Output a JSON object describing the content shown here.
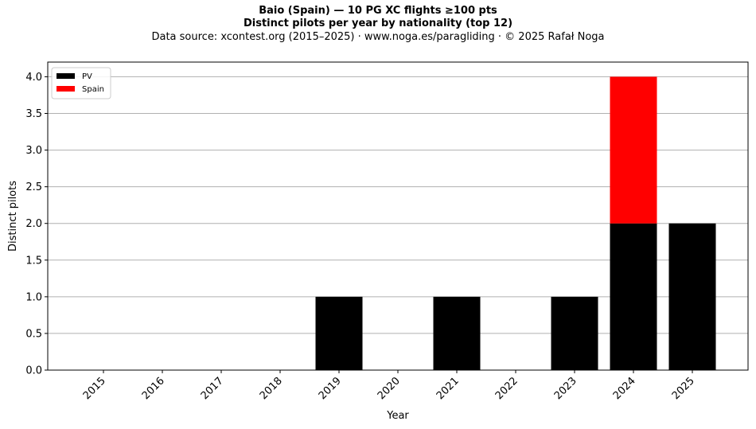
{
  "header": {
    "title_line1": "Baio (Spain)  —  10 PG XC flights ≥100 pts",
    "title_line2": "Distinct pilots per year by nationality (top 12)",
    "source_line": "Data source: xcontest.org (2015–2025)  ·  www.noga.es/paragliding  ·  © 2025 Rafał Noga"
  },
  "chart_data": {
    "type": "bar",
    "stacked": true,
    "categories": [
      "2015",
      "2016",
      "2017",
      "2018",
      "2019",
      "2020",
      "2021",
      "2022",
      "2023",
      "2024",
      "2025"
    ],
    "series": [
      {
        "name": "PV",
        "color": "#000000",
        "values": [
          0,
          0,
          0,
          0,
          1,
          0,
          1,
          0,
          1,
          2,
          2
        ]
      },
      {
        "name": "Spain",
        "color": "#ff0000",
        "values": [
          0,
          0,
          0,
          0,
          0,
          0,
          0,
          0,
          0,
          2,
          0
        ]
      }
    ],
    "xlabel": "Year",
    "ylabel": "Distinct pilots",
    "ylim": [
      0,
      4.2
    ],
    "yticks": [
      "0.0",
      "0.5",
      "1.0",
      "1.5",
      "2.0",
      "2.5",
      "3.0",
      "3.5",
      "4.0"
    ],
    "grid": "horizontal",
    "legend_position": "top-left"
  }
}
